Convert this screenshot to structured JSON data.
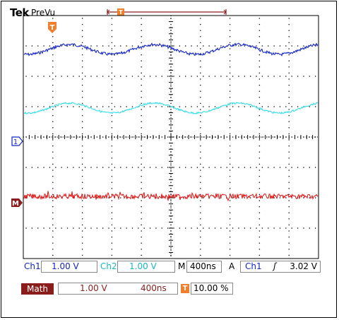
{
  "header": {
    "brand": "Tek",
    "mode": "PreVu"
  },
  "markers": {
    "trigger_top": "T",
    "trigger_position": "T",
    "ch1": "1",
    "math": "M"
  },
  "waveforms": [
    {
      "name": "ch1",
      "color": "#1426c8",
      "cycles": 3.5,
      "noise": "medium"
    },
    {
      "name": "ch2",
      "color": "#35dde8",
      "cycles": 3.5,
      "noise": "low"
    },
    {
      "name": "math",
      "color": "#e01414",
      "cycles": 0,
      "noise": "high"
    }
  ],
  "readout": {
    "ch1_label": "Ch1",
    "ch1_scale": "1.00 V",
    "ch2_label": "Ch2",
    "ch2_scale": "1.00 V",
    "time_label": "M",
    "timebase": "400ns",
    "acq_label": "A",
    "trig_src": "Ch1",
    "trig_slope": "ʃ",
    "trig_level": "3.02 V"
  },
  "math_row": {
    "label": "Math",
    "scale": "1.00 V",
    "timebase": "400ns",
    "trigger_badge": "T",
    "trigger_pos": "10.00 %"
  },
  "colors": {
    "ch1": "#1426c8",
    "ch2": "#35dde8",
    "math": "#e01414",
    "trigger": "#f07e2a",
    "math_label_bg": "#8b1c1c",
    "grid": "#000000"
  }
}
